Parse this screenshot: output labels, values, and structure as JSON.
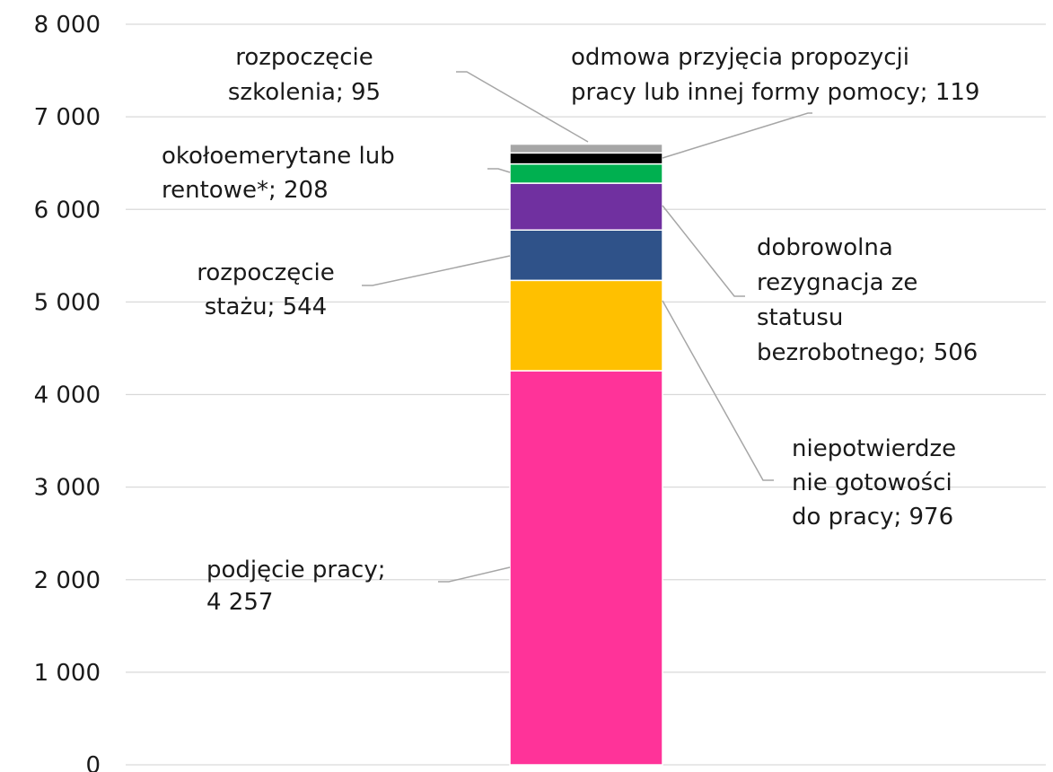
{
  "chart_data": {
    "type": "stacked_bar",
    "ylim": [
      0,
      8000
    ],
    "yticks": [
      0,
      {
        "value": 1000,
        "label": "1 000"
      },
      {
        "value": 2000,
        "label": "2 000"
      },
      {
        "value": 3000,
        "label": "3 000"
      },
      {
        "value": 4000,
        "label": "4 000"
      },
      {
        "value": 5000,
        "label": "5 000"
      },
      {
        "value": 6000,
        "label": "6 000"
      },
      {
        "value": 7000,
        "label": "7 000"
      },
      {
        "value": 8000,
        "label": "8 000"
      }
    ],
    "grid": true,
    "series": [
      {
        "color": "#ff3399",
        "values": [
          4257
        ],
        "value_labels": [
          [
            "podjęcie pracy;",
            "4 257"
          ]
        ]
      },
      {
        "color": "#ffc000",
        "values": [
          976
        ],
        "value_labels": [
          [
            "niepotwierdze",
            "nie gotowości",
            "do pracy; 976"
          ]
        ]
      },
      {
        "color": "#2f5289",
        "values": [
          544
        ],
        "value_labels": [
          [
            "rozpoczęcie",
            "stażu; 544"
          ]
        ]
      },
      {
        "color": "#7030a0",
        "values": [
          506
        ],
        "value_labels": [
          [
            "dobrowolna",
            "rezygnacja ze",
            "statusu",
            "bezrobotnego; 506"
          ]
        ]
      },
      {
        "color": "#00b050",
        "values": [
          208
        ],
        "value_labels": [
          [
            "okołoemerytane lub",
            "rentowe*; 208"
          ]
        ]
      },
      {
        "color": "#000000",
        "values": [
          119
        ],
        "value_labels": [
          [
            "odmowa przyjęcia propozycji",
            "pracy lub innej formy pomocy; 119"
          ]
        ]
      },
      {
        "color": "#a6a6a6",
        "values": [
          95
        ],
        "value_labels": [
          [
            "rozpoczęcie",
            "szkolenia; 95"
          ]
        ]
      }
    ]
  }
}
